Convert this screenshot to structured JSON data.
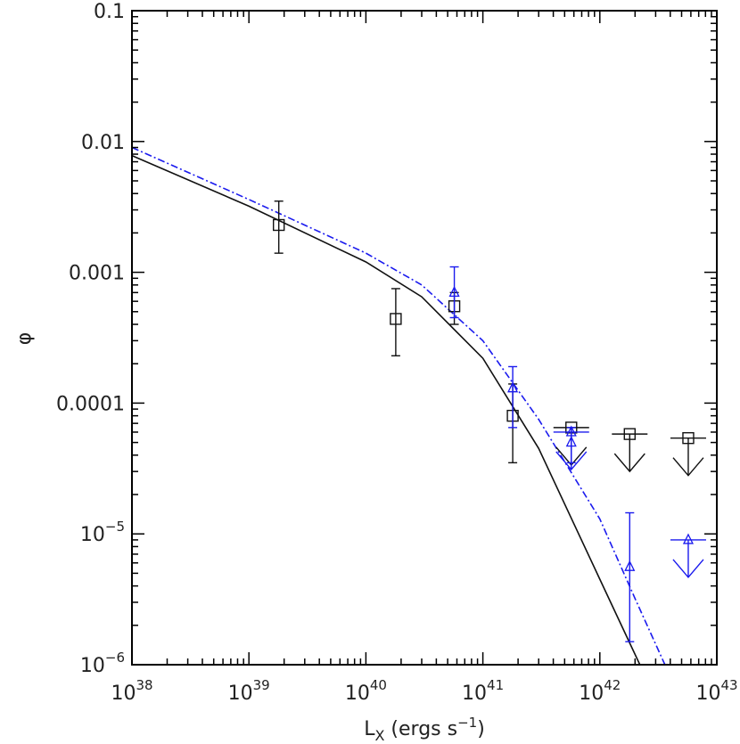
{
  "chart_data": {
    "type": "scatter",
    "x_scale": "log",
    "y_scale": "log",
    "xlim": [
      1e+38,
      1e+43
    ],
    "ylim": [
      1e-06,
      0.1
    ],
    "xlabel": {
      "base": "L",
      "sub": "X",
      "text": " (ergs s",
      "sup": "−1",
      "end": ")"
    },
    "ylabel": "φ",
    "x_ticks": [
      {
        "value": 1e+38,
        "base": "10",
        "exp": "38"
      },
      {
        "value": 1e+39,
        "base": "10",
        "exp": "39"
      },
      {
        "value": 1e+40,
        "base": "10",
        "exp": "40"
      },
      {
        "value": 1e+41,
        "base": "10",
        "exp": "41"
      },
      {
        "value": 1e+42,
        "base": "10",
        "exp": "42"
      },
      {
        "value": 1e+43,
        "base": "10",
        "exp": "43"
      }
    ],
    "y_ticks": [
      {
        "value": 0.1,
        "base": "0.1",
        "exp": ""
      },
      {
        "value": 0.01,
        "base": "0.01",
        "exp": ""
      },
      {
        "value": 0.001,
        "base": "0.001",
        "exp": ""
      },
      {
        "value": 0.0001,
        "base": "0.0001",
        "exp": ""
      },
      {
        "value": 1e-05,
        "base": "10",
        "exp": "−5"
      },
      {
        "value": 1e-06,
        "base": "10",
        "exp": "−6"
      }
    ],
    "colors": {
      "series_black": "#111111",
      "series_blue": "#1a1aee",
      "frame": "#000000"
    },
    "series": [
      {
        "marker": "square",
        "color": "#111111",
        "points": [
          {
            "x": 1.8e+39,
            "y": 0.0023,
            "ylo": 0.0014,
            "yhi": 0.0035
          },
          {
            "x": 1.8e+40,
            "y": 0.00044,
            "ylo": 0.00023,
            "yhi": 0.00075
          },
          {
            "x": 5.7e+40,
            "y": 0.00055,
            "ylo": 0.0004,
            "yhi": 0.0007
          },
          {
            "x": 1.8e+41,
            "y": 8e-05,
            "ylo": 3.5e-05,
            "yhi": 0.00014
          }
        ],
        "upper_limits": [
          {
            "x": 5.7e+41,
            "y": 6.5e-05
          },
          {
            "x": 1.8e+42,
            "y": 5.8e-05
          },
          {
            "x": 5.7e+42,
            "y": 5.4e-05
          }
        ]
      },
      {
        "marker": "triangle",
        "color": "#1a1aee",
        "points": [
          {
            "x": 5.7e+40,
            "y": 0.0007,
            "ylo": 0.00045,
            "yhi": 0.0011
          },
          {
            "x": 1.8e+41,
            "y": 0.00013,
            "ylo": 6.5e-05,
            "yhi": 0.00019
          },
          {
            "x": 5.7e+41,
            "y": 5e-05,
            "ylo": 3.5e-05,
            "yhi": 6.5e-05
          },
          {
            "x": 1.8e+42,
            "y": 5.6e-06,
            "ylo": 1.5e-06,
            "yhi": 1.45e-05
          }
        ],
        "upper_limits": [
          {
            "x": 5.7e+41,
            "y": 6e-05
          },
          {
            "x": 5.7e+42,
            "y": 9e-06
          }
        ]
      }
    ],
    "fits": [
      {
        "style": "solid",
        "color": "#111111",
        "points": [
          [
            1e+38,
            0.0078
          ],
          [
            1e+39,
            0.0032
          ],
          [
            1e+40,
            0.0012
          ],
          [
            3e+40,
            0.00065
          ],
          [
            1e+41,
            0.00022
          ],
          [
            3e+41,
            4.5e-05
          ],
          [
            1e+42,
            4.5e-06
          ],
          [
            2.2e+42,
            1e-06
          ]
        ]
      },
      {
        "style": "dashdot",
        "color": "#1a1aee",
        "points": [
          [
            1e+38,
            0.009
          ],
          [
            1e+39,
            0.0036
          ],
          [
            1e+40,
            0.0014
          ],
          [
            3e+40,
            0.0008
          ],
          [
            1e+41,
            0.0003
          ],
          [
            3e+41,
            7.5e-05
          ],
          [
            1e+42,
            1.3e-05
          ],
          [
            2e+42,
            3.2e-06
          ],
          [
            3.6e+42,
            1e-06
          ]
        ]
      }
    ],
    "grid": false,
    "legend": "none"
  }
}
